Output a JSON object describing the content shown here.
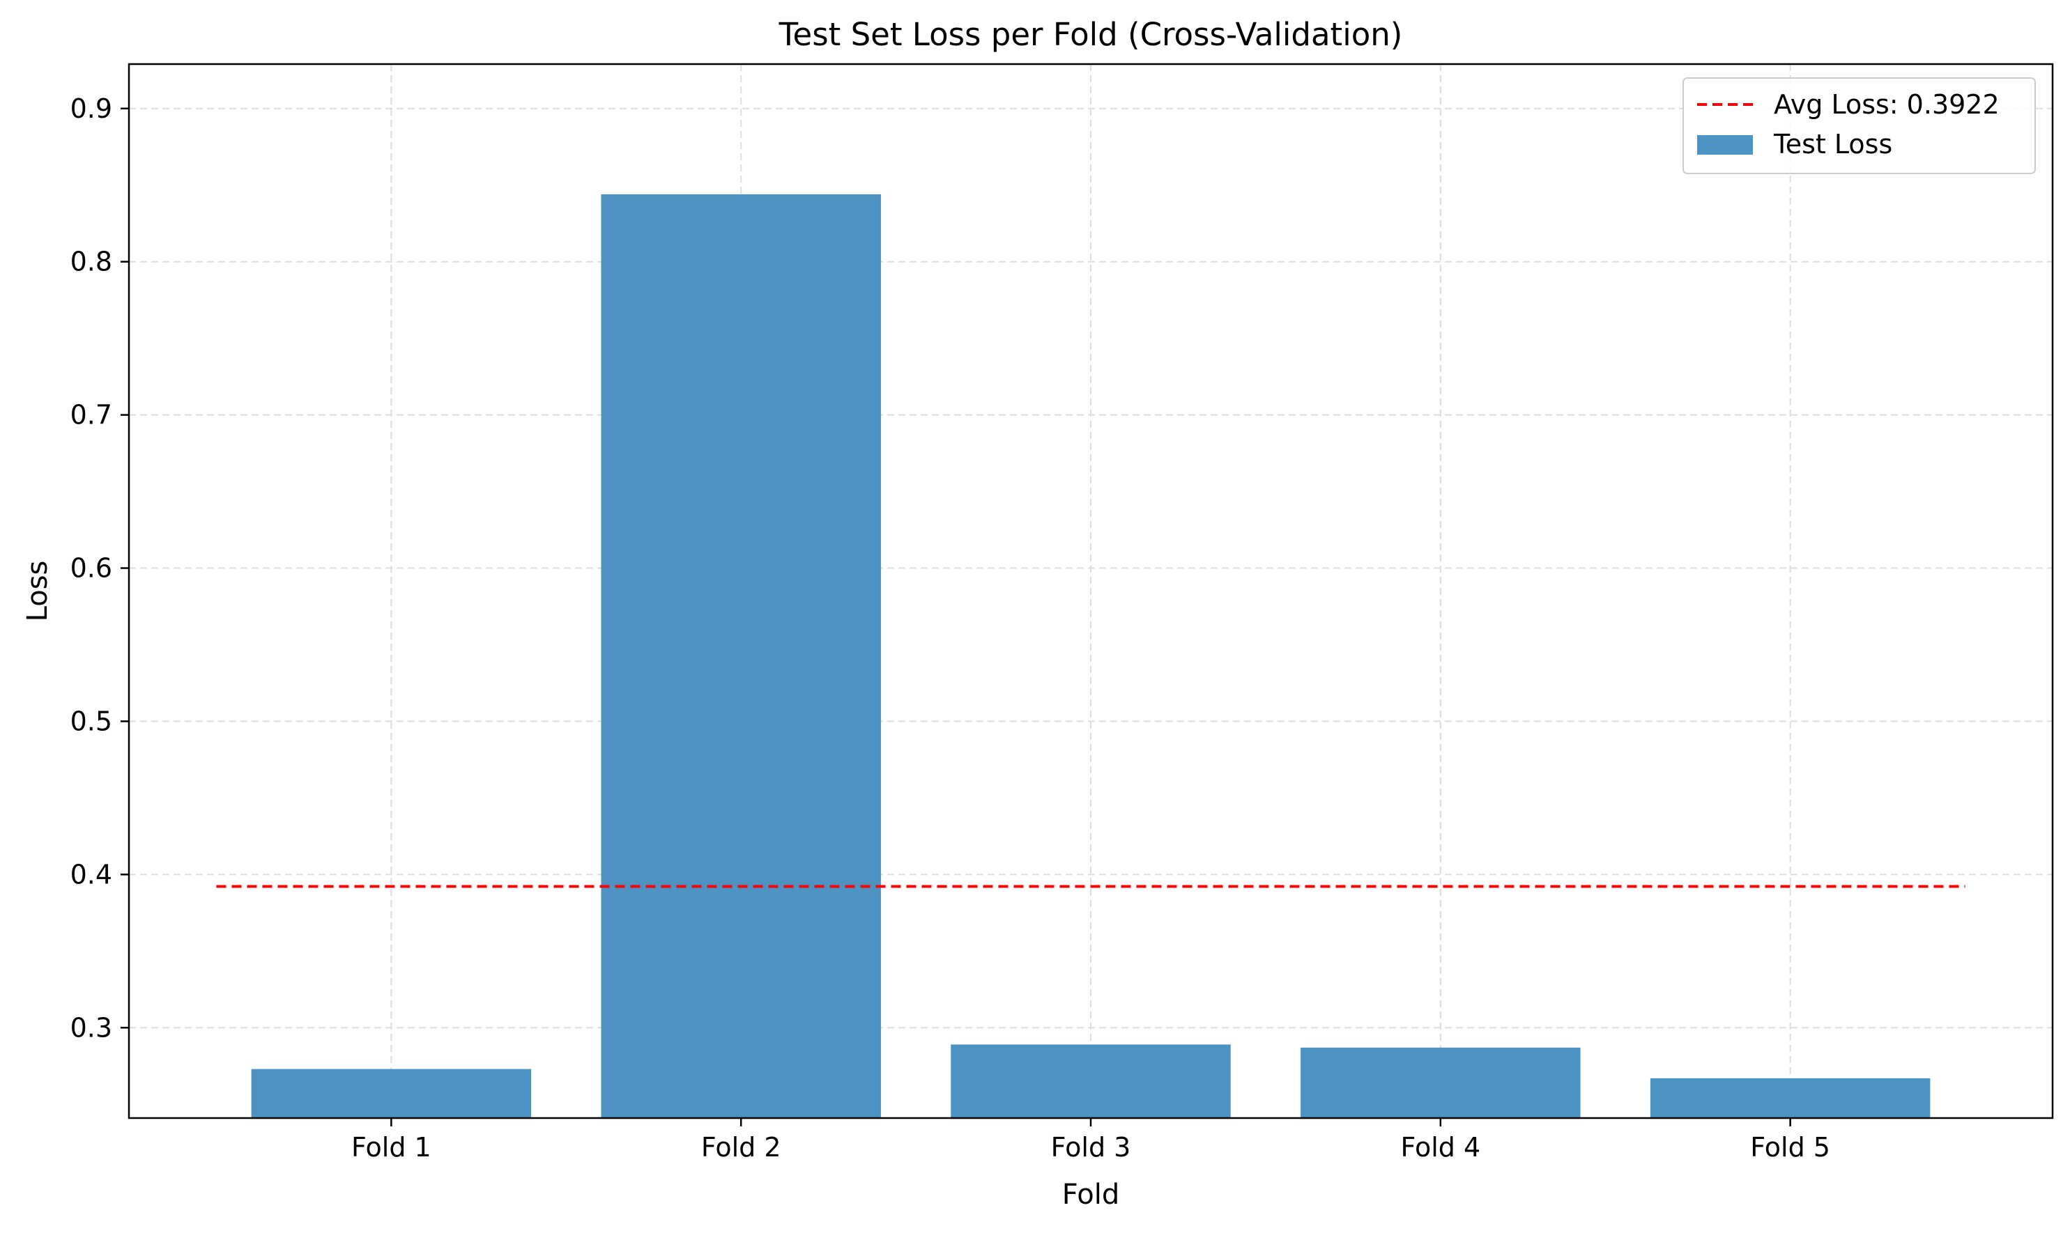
{
  "chart_data": {
    "type": "bar",
    "title": "Test Set Loss per Fold (Cross-Validation)",
    "xlabel": "Fold",
    "ylabel": "Loss",
    "categories": [
      "Fold 1",
      "Fold 2",
      "Fold 3",
      "Fold 4",
      "Fold 5"
    ],
    "series": [
      {
        "name": "Test Loss",
        "values": [
          0.273,
          0.844,
          0.289,
          0.287,
          0.267
        ],
        "color": "#4c92c3"
      }
    ],
    "reference_line": {
      "name": "Avg Loss: 0.3922",
      "value": 0.3922,
      "color": "#ff0000",
      "style": "dashed"
    },
    "ylim": [
      0.241,
      0.929
    ],
    "yticks": [
      0.3,
      0.4,
      0.5,
      0.6,
      0.7,
      0.8,
      0.9
    ],
    "grid": true,
    "legend_position": "top-right"
  }
}
